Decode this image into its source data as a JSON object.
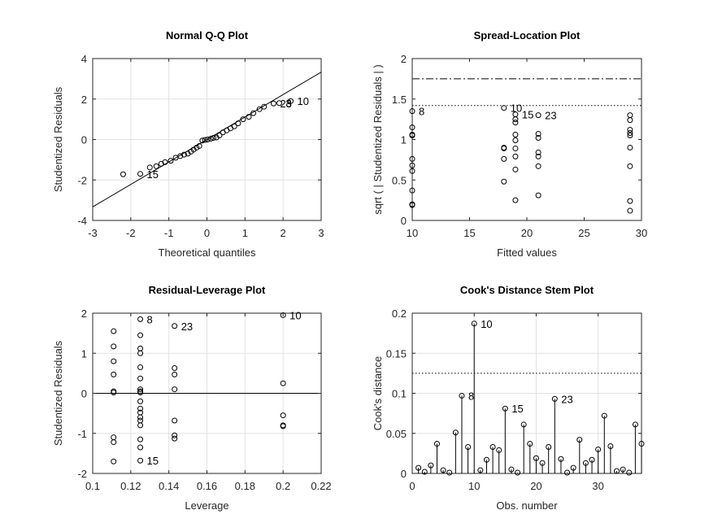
{
  "chart_data": [
    {
      "type": "scatter",
      "title": "Normal Q-Q Plot",
      "xlabel": "Theoretical quantiles",
      "ylabel": "Studentized Residuals",
      "xlim": [
        -3,
        3
      ],
      "ylim": [
        -4,
        4
      ],
      "xticks": [
        -3,
        -2,
        -1,
        0,
        1,
        2,
        3
      ],
      "yticks": [
        -4,
        -2,
        0,
        2,
        4
      ],
      "grid": true,
      "reference_line": {
        "slope": 1.11,
        "intercept": 0.0
      },
      "x": [
        -2.2,
        -1.75,
        -1.5,
        -1.33,
        -1.2,
        -1.1,
        -0.95,
        -0.82,
        -0.7,
        -0.6,
        -0.5,
        -0.42,
        -0.35,
        -0.27,
        -0.2,
        -0.12,
        -0.05,
        0.02,
        0.1,
        0.17,
        0.25,
        0.33,
        0.42,
        0.52,
        0.62,
        0.72,
        0.82,
        0.95,
        1.1,
        1.22,
        1.38,
        1.5,
        1.75,
        1.9,
        2.2
      ],
      "y": [
        -1.72,
        -1.7,
        -1.38,
        -1.32,
        -1.2,
        -1.12,
        -1.05,
        -0.9,
        -0.82,
        -0.75,
        -0.7,
        -0.6,
        -0.5,
        -0.4,
        -0.32,
        -0.05,
        -0.02,
        0.0,
        0.04,
        0.08,
        0.1,
        0.2,
        0.35,
        0.45,
        0.55,
        0.65,
        0.8,
        1.0,
        1.12,
        1.3,
        1.5,
        1.62,
        1.78,
        1.8,
        1.9
      ],
      "labels": [
        {
          "text": "15",
          "index": 1
        },
        {
          "text": "23",
          "index": 32
        },
        {
          "text": "8",
          "index": 33
        },
        {
          "text": "10",
          "index": 34
        }
      ]
    },
    {
      "type": "scatter",
      "title": "Spread-Location Plot",
      "xlabel": "Fitted values",
      "ylabel": "sqrt ( | Studentized Residuals | )",
      "xlim": [
        10,
        30
      ],
      "ylim": [
        0,
        2
      ],
      "xticks": [
        10,
        15,
        20,
        25,
        30
      ],
      "yticks": [
        0,
        0.5,
        1,
        1.5,
        2
      ],
      "grid": false,
      "hlines": [
        {
          "y": 2.0,
          "style": "dashed"
        },
        {
          "y": 1.75,
          "style": "dashdot"
        },
        {
          "y": 1.42,
          "style": "dotted"
        }
      ],
      "x": [
        10,
        10,
        10,
        10,
        10,
        10,
        10,
        10,
        10,
        10,
        18,
        18,
        18,
        18,
        18,
        19,
        19,
        19,
        19,
        19,
        19,
        19,
        19,
        19,
        21,
        21,
        21,
        21,
        21,
        21,
        21,
        29,
        29,
        29,
        29,
        29,
        29,
        29,
        29,
        29
      ],
      "y": [
        1.35,
        1.15,
        1.06,
        0.76,
        0.68,
        0.61,
        0.37,
        0.2,
        0.19,
        1.05,
        1.39,
        0.9,
        0.89,
        0.76,
        0.48,
        1.31,
        1.21,
        1.06,
        0.99,
        0.89,
        0.79,
        0.63,
        0.25,
        1.25,
        1.3,
        1.07,
        1.02,
        0.84,
        0.79,
        0.67,
        0.31,
        1.3,
        1.24,
        1.12,
        1.08,
        1.05,
        0.9,
        0.67,
        0.24,
        0.12
      ],
      "labels": [
        {
          "text": "8",
          "index": 0
        },
        {
          "text": "10",
          "index": 10
        },
        {
          "text": "15",
          "index": 15
        },
        {
          "text": "23",
          "index": 24
        }
      ]
    },
    {
      "type": "scatter",
      "title": "Residual-Leverage Plot",
      "xlabel": "Leverage",
      "ylabel": "Studentized Residuals",
      "xlim": [
        0.1,
        0.22
      ],
      "ylim": [
        -2,
        2
      ],
      "xticks": [
        0.1,
        0.12,
        0.14,
        0.16,
        0.18,
        0.2,
        0.22
      ],
      "yticks": [
        -2,
        -1,
        0,
        1,
        2
      ],
      "grid": true,
      "hlines": [
        {
          "y": 0,
          "style": "solid"
        }
      ],
      "x": [
        0.111,
        0.111,
        0.111,
        0.111,
        0.111,
        0.111,
        0.111,
        0.111,
        0.111,
        0.125,
        0.125,
        0.125,
        0.125,
        0.125,
        0.125,
        0.125,
        0.125,
        0.125,
        0.125,
        0.125,
        0.125,
        0.125,
        0.125,
        0.125,
        0.125,
        0.125,
        0.125,
        0.143,
        0.143,
        0.143,
        0.143,
        0.143,
        0.143,
        0.143,
        0.2,
        0.2,
        0.2,
        0.2,
        0.2
      ],
      "y": [
        1.55,
        1.17,
        0.8,
        0.47,
        0.05,
        0.02,
        -1.1,
        -1.22,
        -1.7,
        1.85,
        1.45,
        1.12,
        1.0,
        0.65,
        0.37,
        0.1,
        0.05,
        0.02,
        -0.38,
        -0.48,
        -0.6,
        -0.68,
        -0.8,
        -1.15,
        -1.35,
        -1.68,
        -0.2,
        1.68,
        0.63,
        0.47,
        0.1,
        -0.68,
        -1.05,
        -1.13,
        1.95,
        0.25,
        -0.55,
        -0.8,
        -0.82
      ],
      "labels": [
        {
          "text": "8",
          "index": 9
        },
        {
          "text": "15",
          "index": 25
        },
        {
          "text": "23",
          "index": 27
        },
        {
          "text": "10",
          "index": 34
        }
      ]
    },
    {
      "type": "stem",
      "title": "Cook's Distance Stem Plot",
      "xlabel": "Obs. number",
      "ylabel": "Cook's distance",
      "xlim": [
        0,
        37
      ],
      "ylim": [
        0,
        0.2
      ],
      "xticks": [
        0,
        10,
        20,
        30
      ],
      "yticks": [
        0,
        0.05,
        0.1,
        0.15,
        0.2
      ],
      "grid": true,
      "hlines": [
        {
          "y": 0.125,
          "style": "dotted"
        }
      ],
      "x": [
        1,
        2,
        3,
        4,
        5,
        6,
        7,
        8,
        9,
        10,
        11,
        12,
        13,
        14,
        15,
        16,
        17,
        18,
        19,
        20,
        21,
        22,
        23,
        24,
        25,
        26,
        27,
        28,
        29,
        30,
        31,
        32,
        33,
        34,
        35,
        36,
        37
      ],
      "y": [
        0.007,
        0.002,
        0.01,
        0.037,
        0.004,
        0.001,
        0.051,
        0.097,
        0.033,
        0.187,
        0.004,
        0.017,
        0.033,
        0.029,
        0.081,
        0.005,
        0.001,
        0.061,
        0.037,
        0.019,
        0.013,
        0.033,
        0.093,
        0.018,
        0.001,
        0.007,
        0.042,
        0.013,
        0.017,
        0.03,
        0.072,
        0.034,
        0.003,
        0.005,
        0.001,
        0.061,
        0.037
      ],
      "labels": [
        {
          "text": "8",
          "index": 7
        },
        {
          "text": "10",
          "index": 9
        },
        {
          "text": "15",
          "index": 14
        },
        {
          "text": "23",
          "index": 22
        }
      ]
    }
  ]
}
